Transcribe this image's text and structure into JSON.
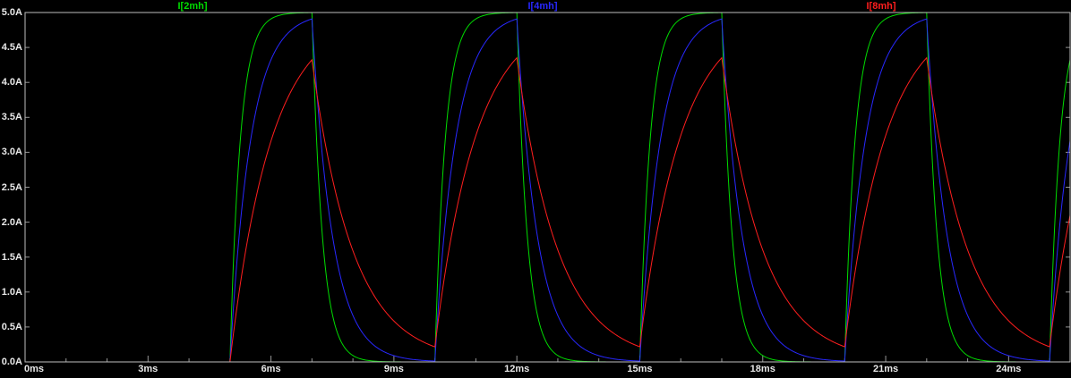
{
  "colors": {
    "background": "#000000",
    "plot_border": "#bebebe",
    "tick": "#969696",
    "axis_text": "#e8e8e8"
  },
  "axes": {
    "y_ticks": [
      {
        "label": "5.0A",
        "value": 5.0
      },
      {
        "label": "4.5A",
        "value": 4.5
      },
      {
        "label": "4.0A",
        "value": 4.0
      },
      {
        "label": "3.5A",
        "value": 3.5
      },
      {
        "label": "3.0A",
        "value": 3.0
      },
      {
        "label": "2.5A",
        "value": 2.5
      },
      {
        "label": "2.0A",
        "value": 2.0
      },
      {
        "label": "1.5A",
        "value": 1.5
      },
      {
        "label": "1.0A",
        "value": 1.0
      },
      {
        "label": "0.5A",
        "value": 0.5
      },
      {
        "label": "0.0A",
        "value": 0.0
      }
    ],
    "x_ticks": [
      {
        "label": "0ms",
        "value": 0
      },
      {
        "label": "3ms",
        "value": 3
      },
      {
        "label": "6ms",
        "value": 6
      },
      {
        "label": "9ms",
        "value": 9
      },
      {
        "label": "12ms",
        "value": 12
      },
      {
        "label": "15ms",
        "value": 15
      },
      {
        "label": "18ms",
        "value": 18
      },
      {
        "label": "21ms",
        "value": 21
      },
      {
        "label": "24ms",
        "value": 24
      }
    ],
    "x_minor_step_ms": 1,
    "y_minor_step_A": 0.5
  },
  "chart_data": {
    "type": "line",
    "title": "",
    "x_unit": "ms",
    "y_unit": "A",
    "x_range": [
      0,
      25.5
    ],
    "y_range": [
      0,
      5
    ],
    "grid": false,
    "legend_position": "top",
    "drive": {
      "type": "pulse",
      "delay_ms": 5,
      "on_ms": 2,
      "period_ms": 5,
      "i_final_A": 5.0
    },
    "series": [
      {
        "name": "I[2mh]",
        "color": "#00dc00",
        "tau_ms": 0.25,
        "approx_peak_A": 5.0,
        "approx_min_A": 0.0
      },
      {
        "name": "I[4mh]",
        "color": "#2828ff",
        "tau_ms": 0.5,
        "approx_peak_A": 4.91,
        "approx_min_A": 0.01
      },
      {
        "name": "I[8mh]",
        "color": "#ff1e1e",
        "tau_ms": 1.0,
        "approx_peak_A": 4.35,
        "approx_min_A": 0.22
      }
    ],
    "key_points": {
      "rise_start_times_ms": [
        5,
        10,
        15,
        20,
        25
      ],
      "peak_times_ms": [
        7,
        12,
        17,
        22
      ],
      "decay_end_times_ms": [
        10,
        15,
        20,
        25
      ]
    }
  }
}
